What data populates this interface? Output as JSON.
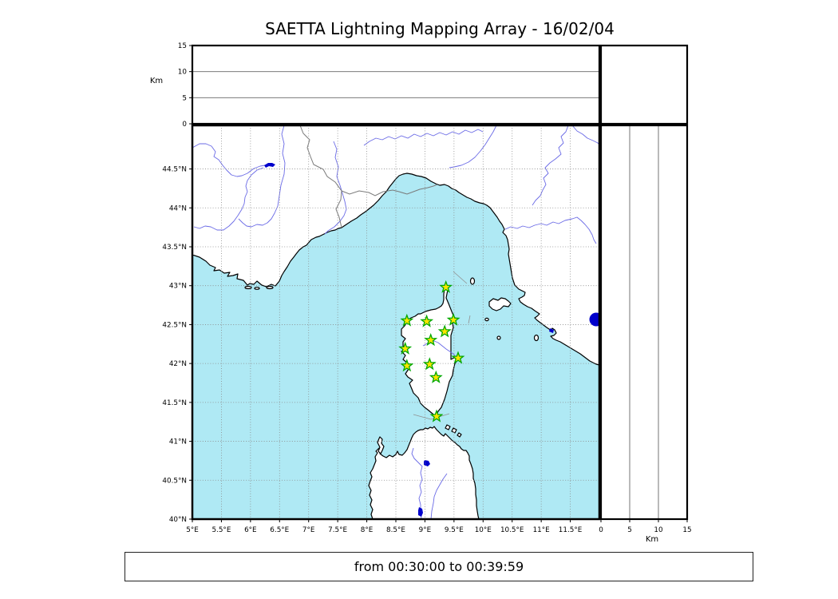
{
  "title": "SAETTA Lightning Mapping Array - 16/02/04",
  "footer": "from 00:30:00 to 00:39:59",
  "axes": {
    "altitude_left": {
      "unit_label": "Km",
      "ticks": [
        "15",
        "10",
        "5",
        "0"
      ]
    },
    "altitude_bottom": {
      "unit_label": "Km",
      "ticks": [
        "0",
        "5",
        "10",
        "15"
      ]
    },
    "latitude_ticks": [
      "44.5°N",
      "44°N",
      "43.5°N",
      "43°N",
      "42.5°N",
      "42°N",
      "41.5°N",
      "41°N",
      "40.5°N",
      "40°N"
    ],
    "longitude_ticks": [
      "5°E",
      "5.5°E",
      "6°E",
      "6.5°E",
      "7°E",
      "7.5°E",
      "8°E",
      "8.5°E",
      "9°E",
      "9.5°E",
      "10°E",
      "10.5°E",
      "11°E",
      "11.5°E"
    ]
  },
  "colors": {
    "sea": "#afe9f4",
    "land": "#ffffff",
    "coastline": "#000000",
    "river": "#6a6ae6",
    "country_border": "#7a7a7a",
    "graticule": "#8a8a8a",
    "lake": "#0000cc",
    "station_fill": "#ffe400",
    "station_stroke": "#00a800"
  },
  "chart_data": {
    "type": "scatter",
    "title": "SAETTA Lightning Mapping Array - 16/02/04",
    "time_window": "from 00:30:00 to 00:39:59",
    "map_extent": {
      "lon_min": 5,
      "lon_max": 12,
      "lat_min": 40,
      "lat_max": 45.06
    },
    "altitude_range_km": [
      0,
      15
    ],
    "altitude_gridlines_km": [
      5,
      10
    ],
    "stations_lma": [
      {
        "lon": 9.36,
        "lat": 42.98
      },
      {
        "lon": 8.69,
        "lat": 42.55
      },
      {
        "lon": 9.03,
        "lat": 42.54
      },
      {
        "lon": 9.49,
        "lat": 42.56
      },
      {
        "lon": 9.34,
        "lat": 42.41
      },
      {
        "lon": 9.1,
        "lat": 42.3
      },
      {
        "lon": 8.66,
        "lat": 42.19
      },
      {
        "lon": 9.57,
        "lat": 42.07
      },
      {
        "lon": 9.08,
        "lat": 41.99
      },
      {
        "lon": 8.69,
        "lat": 41.97
      },
      {
        "lon": 9.19,
        "lat": 41.82
      },
      {
        "lon": 9.2,
        "lat": 41.32
      }
    ],
    "lightning_sources": []
  }
}
